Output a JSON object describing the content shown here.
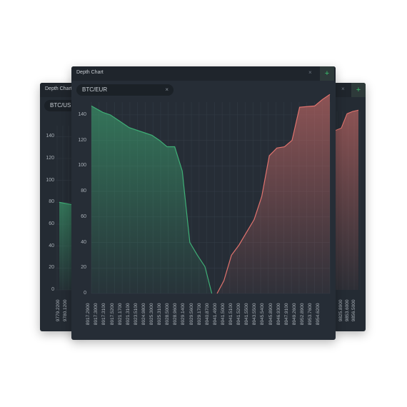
{
  "windows": {
    "left": {
      "title": "Depth Chart",
      "pill_label": "BTC/USD",
      "y_ticks": [
        "140",
        "120",
        "100",
        "80",
        "60",
        "40",
        "20",
        "0"
      ],
      "x_ticks": [
        "9779.2200",
        "9780.1200"
      ]
    },
    "right": {
      "x_ticks": [
        "9825.8900",
        "9853.6000",
        "9856.5000"
      ]
    },
    "main": {
      "title": "Depth Chart",
      "close_symbol": "×",
      "add_symbol": "+",
      "pill_label": "BTC/EUR",
      "pill_close": "×"
    }
  },
  "colors": {
    "bid": "#3fae76",
    "ask": "#e0736e",
    "panel": "#262d36",
    "add_button": "#39c26e"
  },
  "chart_data": {
    "type": "area",
    "ylim": [
      0,
      150
    ],
    "yticks": [
      0,
      20,
      40,
      60,
      80,
      100,
      120,
      140
    ],
    "x": [
      "8917.2900",
      "8917.3000",
      "8917.3100",
      "8917.5200",
      "8921.1700",
      "8921.3100",
      "8923.5100",
      "8924.9800",
      "8925.3000",
      "8925.3100",
      "8928.5000",
      "8928.9600",
      "8929.1400",
      "8929.5600",
      "8929.1700",
      "8940.8700",
      "8941.4900",
      "8941.5000",
      "8941.5100",
      "8941.5200",
      "8941.5500",
      "8943.5500",
      "8945.5400",
      "8945.8900",
      "8946.9300",
      "8947.9100",
      "8949.2600",
      "8952.8900",
      "8953.7600",
      "8954.6200"
    ],
    "series": [
      {
        "values": [
          147,
          142,
          138,
          136,
          130,
          127,
          125,
          122,
          116,
          116,
          92,
          71,
          64,
          58,
          50,
          null,
          null,
          null,
          null,
          null,
          null,
          null,
          null,
          null,
          null,
          null,
          null,
          null,
          null,
          null
        ]
      },
      {
        "values": [
          null,
          null,
          null,
          null,
          null,
          null,
          null,
          null,
          null,
          null,
          null,
          null,
          null,
          null,
          null,
          0,
          10,
          29,
          40,
          56,
          75,
          108,
          114,
          116,
          122,
          146,
          147,
          147,
          151,
          158
        ]
      }
    ],
    "bid_series_points": [
      [
        0,
        147
      ],
      [
        1.5,
        142
      ],
      [
        2.5,
        140
      ],
      [
        3.5,
        136
      ],
      [
        5,
        130
      ],
      [
        6,
        128
      ],
      [
        7,
        126
      ],
      [
        8,
        124
      ],
      [
        9,
        120
      ],
      [
        10,
        115
      ],
      [
        11,
        115
      ],
      [
        12,
        96
      ],
      [
        13,
        40
      ],
      [
        14,
        30
      ],
      [
        15,
        21
      ],
      [
        15.9,
        0
      ]
    ],
    "ask_series_points": [
      [
        16.6,
        0
      ],
      [
        17.5,
        10
      ],
      [
        18.5,
        30
      ],
      [
        19.5,
        38
      ],
      [
        20.5,
        48
      ],
      [
        21.5,
        58
      ],
      [
        22.5,
        76
      ],
      [
        23.5,
        108
      ],
      [
        24.5,
        114
      ],
      [
        25.5,
        115
      ],
      [
        26.5,
        120
      ],
      [
        27.5,
        146
      ],
      [
        28.5,
        146.5
      ],
      [
        29.5,
        147
      ],
      [
        30.5,
        152
      ],
      [
        31.5,
        156
      ]
    ],
    "x_labels": [
      "8917.2900",
      "8917.3000",
      "8917.3100",
      "8917.5200",
      "8921.1700",
      "8921.3100",
      "8923.5100",
      "8924.9800",
      "8925.3000",
      "8925.3100",
      "8928.5000",
      "8928.9600",
      "8929.1400",
      "8929.5600",
      "8929.1700",
      "8940.8700",
      "8941.4900",
      "8941.5000",
      "8941.5100",
      "8941.5200",
      "8941.5500",
      "8943.5500",
      "8945.5400",
      "8945.8900",
      "8946.9300",
      "8947.9100",
      "8949.2600",
      "8952.8900",
      "8953.7600",
      "8954.6200"
    ]
  }
}
